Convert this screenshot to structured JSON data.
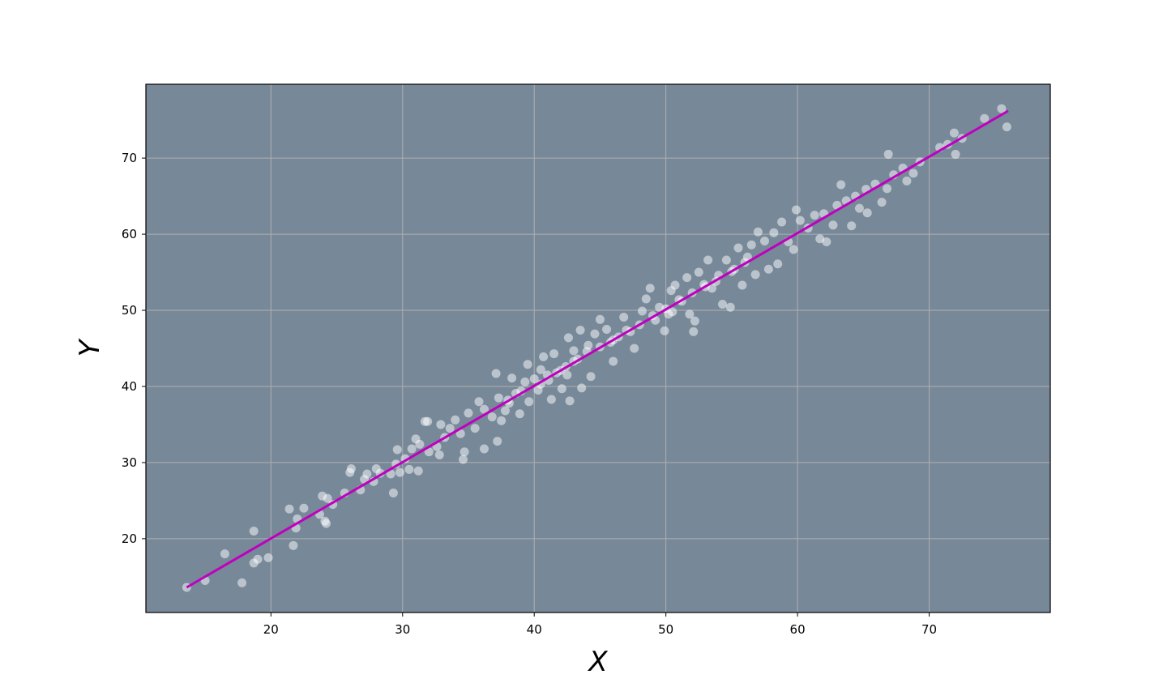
{
  "chart_data": {
    "type": "scatter",
    "title": "",
    "xlabel": "X",
    "ylabel": "Y",
    "xlim": [
      10.5,
      79.2
    ],
    "ylim": [
      10.3,
      79.7
    ],
    "xticks": [
      20,
      30,
      40,
      50,
      60,
      70
    ],
    "yticks": [
      20,
      30,
      40,
      50,
      60,
      70
    ],
    "grid": true,
    "colors": {
      "background": "#778899",
      "points": "#ffffff",
      "line": "#bf00bf",
      "grid": "#b0b0b0"
    },
    "fit_line": {
      "x": [
        13.6,
        76.0
      ],
      "y": [
        13.6,
        76.2
      ]
    },
    "points": [
      [
        13.6,
        13.6
      ],
      [
        15,
        14.5
      ],
      [
        16.5,
        18
      ],
      [
        17.8,
        14.2
      ],
      [
        18.7,
        21
      ],
      [
        18.7,
        16.8
      ],
      [
        19,
        17.3
      ],
      [
        19.8,
        17.5
      ],
      [
        21.4,
        23.9
      ],
      [
        21.7,
        19.1
      ],
      [
        21.9,
        21.4
      ],
      [
        22,
        22.6
      ],
      [
        22.5,
        24
      ],
      [
        23.7,
        23.2
      ],
      [
        23.9,
        25.6
      ],
      [
        24.1,
        22.3
      ],
      [
        24.2,
        22
      ],
      [
        24.3,
        25.3
      ],
      [
        24.7,
        24.5
      ],
      [
        25.6,
        26
      ],
      [
        26,
        28.7
      ],
      [
        26.1,
        29.2
      ],
      [
        26.8,
        26.4
      ],
      [
        27.1,
        27.8
      ],
      [
        27.3,
        28.5
      ],
      [
        27.8,
        27.5
      ],
      [
        28,
        29.2
      ],
      [
        28.3,
        28.6
      ],
      [
        29.1,
        28.5
      ],
      [
        29.3,
        26
      ],
      [
        29.5,
        29.8
      ],
      [
        29.6,
        31.7
      ],
      [
        29.8,
        28.7
      ],
      [
        30.2,
        30.5
      ],
      [
        30.5,
        29.1
      ],
      [
        30.7,
        31.8
      ],
      [
        31,
        33.1
      ],
      [
        31.2,
        28.9
      ],
      [
        31.3,
        32.4
      ],
      [
        31.7,
        35.4
      ],
      [
        31.9,
        35.4
      ],
      [
        32,
        31.4
      ],
      [
        32.6,
        32.1
      ],
      [
        32.8,
        31
      ],
      [
        32.9,
        35
      ],
      [
        33.2,
        33.3
      ],
      [
        33.6,
        34.5
      ],
      [
        34,
        35.6
      ],
      [
        34.4,
        33.8
      ],
      [
        34.6,
        30.4
      ],
      [
        34.7,
        31.4
      ],
      [
        35,
        36.5
      ],
      [
        35.5,
        34.5
      ],
      [
        35.8,
        38
      ],
      [
        36.2,
        37
      ],
      [
        36.2,
        31.8
      ],
      [
        36.8,
        36
      ],
      [
        37.1,
        41.7
      ],
      [
        37.2,
        32.8
      ],
      [
        37.3,
        38.5
      ],
      [
        37.5,
        35.5
      ],
      [
        37.8,
        36.8
      ],
      [
        38.1,
        37.8
      ],
      [
        38.3,
        41.1
      ],
      [
        38.6,
        39.1
      ],
      [
        38.9,
        36.4
      ],
      [
        39.3,
        40.6
      ],
      [
        39.5,
        42.9
      ],
      [
        39.6,
        38
      ],
      [
        40,
        41
      ],
      [
        40.3,
        39.5
      ],
      [
        40.5,
        42.2
      ],
      [
        40.7,
        43.9
      ],
      [
        41.1,
        40.8
      ],
      [
        41.3,
        38.3
      ],
      [
        41.5,
        44.3
      ],
      [
        41.7,
        41.8
      ],
      [
        42.1,
        39.7
      ],
      [
        42.4,
        42.6
      ],
      [
        42.5,
        41.5
      ],
      [
        42.6,
        46.4
      ],
      [
        42.7,
        38.1
      ],
      [
        43,
        44.7
      ],
      [
        43.3,
        43.6
      ],
      [
        43.5,
        47.4
      ],
      [
        43.6,
        39.8
      ],
      [
        44.1,
        45.4
      ],
      [
        44.3,
        41.3
      ],
      [
        44.6,
        46.9
      ],
      [
        45,
        48.8
      ],
      [
        45.5,
        47.5
      ],
      [
        45.8,
        45.8
      ],
      [
        46,
        43.3
      ],
      [
        46.4,
        46.5
      ],
      [
        46.8,
        49.1
      ],
      [
        47.3,
        47.2
      ],
      [
        47.6,
        45
      ],
      [
        48.2,
        49.9
      ],
      [
        48.5,
        51.5
      ],
      [
        48.8,
        52.9
      ],
      [
        49.2,
        48.7
      ],
      [
        49.5,
        50.4
      ],
      [
        49.9,
        47.3
      ],
      [
        50.2,
        49.5
      ],
      [
        50.4,
        52.6
      ],
      [
        50.7,
        53.3
      ],
      [
        51.2,
        51.2
      ],
      [
        51.6,
        54.3
      ],
      [
        51.8,
        49.5
      ],
      [
        52.1,
        47.2
      ],
      [
        52.2,
        48.6
      ],
      [
        52.5,
        55
      ],
      [
        52.9,
        53.4
      ],
      [
        53.2,
        56.6
      ],
      [
        53.5,
        52.9
      ],
      [
        53.8,
        53.8
      ],
      [
        54.3,
        50.8
      ],
      [
        54.6,
        56.6
      ],
      [
        54.9,
        50.4
      ],
      [
        55.2,
        55.4
      ],
      [
        55.5,
        58.2
      ],
      [
        55.8,
        53.3
      ],
      [
        56.2,
        57
      ],
      [
        56.5,
        58.6
      ],
      [
        56.8,
        54.7
      ],
      [
        57,
        60.3
      ],
      [
        57.5,
        59.1
      ],
      [
        57.8,
        55.4
      ],
      [
        58.2,
        60.2
      ],
      [
        58.5,
        56.1
      ],
      [
        58.8,
        61.6
      ],
      [
        59.3,
        59
      ],
      [
        59.7,
        58
      ],
      [
        59.9,
        63.2
      ],
      [
        60.2,
        61.8
      ],
      [
        60.8,
        60.8
      ],
      [
        61.3,
        62.5
      ],
      [
        61.7,
        59.4
      ],
      [
        62,
        62.7
      ],
      [
        62.2,
        59
      ],
      [
        62.7,
        61.2
      ],
      [
        63,
        63.8
      ],
      [
        63.3,
        66.5
      ],
      [
        63.7,
        64.4
      ],
      [
        64.1,
        61.1
      ],
      [
        64.4,
        65
      ],
      [
        64.7,
        63.4
      ],
      [
        65.2,
        65.9
      ],
      [
        65.3,
        62.8
      ],
      [
        65.9,
        66.6
      ],
      [
        66.4,
        64.2
      ],
      [
        66.8,
        66
      ],
      [
        66.9,
        70.5
      ],
      [
        67.3,
        67.8
      ],
      [
        68,
        68.7
      ],
      [
        68.3,
        67
      ],
      [
        68.8,
        68
      ],
      [
        69.3,
        69.5
      ],
      [
        70.8,
        71.4
      ],
      [
        71.4,
        71.8
      ],
      [
        71.9,
        73.3
      ],
      [
        72,
        70.5
      ],
      [
        72.5,
        72.6
      ],
      [
        74.2,
        75.2
      ],
      [
        75.5,
        76.5
      ],
      [
        75.9,
        74.1
      ],
      [
        38,
        38.2
      ],
      [
        39,
        39.4
      ],
      [
        40.5,
        40.3
      ],
      [
        41,
        41.5
      ],
      [
        42,
        42.1
      ],
      [
        43,
        43.3
      ],
      [
        44,
        44.6
      ],
      [
        45,
        45.2
      ],
      [
        46,
        46.1
      ],
      [
        47,
        47.4
      ],
      [
        48,
        48.1
      ],
      [
        49,
        49.3
      ],
      [
        50,
        50.2
      ],
      [
        50.5,
        49.8
      ],
      [
        51,
        51.4
      ],
      [
        52,
        52.3
      ],
      [
        53,
        53.1
      ],
      [
        54,
        54.6
      ],
      [
        55,
        55.1
      ],
      [
        56,
        56.3
      ]
    ]
  }
}
